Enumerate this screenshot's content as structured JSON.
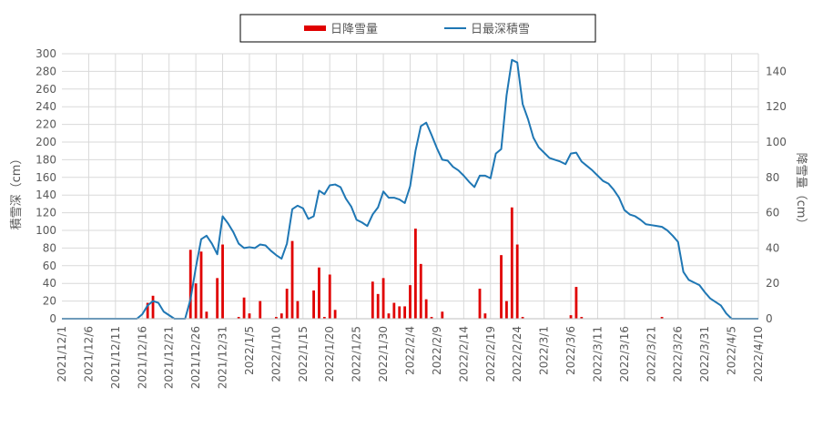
{
  "chart_data": {
    "type": "bar+line",
    "categories": [
      "2021/12/1",
      "2021/12/6",
      "2021/12/11",
      "2021/12/16",
      "2021/12/21",
      "2021/12/26",
      "2021/12/31",
      "2022/1/5",
      "2022/1/10",
      "2022/1/15",
      "2022/1/20",
      "2022/1/25",
      "2022/1/30",
      "2022/2/4",
      "2022/2/9",
      "2022/2/14",
      "2022/2/19",
      "2022/2/24",
      "2022/3/1",
      "2022/3/6",
      "2022/3/11",
      "2022/3/16",
      "2022/3/21",
      "2022/3/26",
      "2022/3/31",
      "2022/4/5",
      "2022/4/10"
    ],
    "left_axis": {
      "label": "積雪深（cm）",
      "range": [
        0,
        300
      ],
      "ticks": [
        0,
        20,
        40,
        60,
        80,
        100,
        120,
        140,
        160,
        180,
        200,
        220,
        240,
        260,
        280,
        300
      ]
    },
    "right_axis": {
      "label": "降雪量（cm）",
      "range": [
        0,
        150
      ],
      "ticks": [
        0,
        20,
        40,
        60,
        80,
        100,
        120,
        140
      ]
    },
    "grid": true,
    "legend_position": "top",
    "series": [
      {
        "name": "日降雪量",
        "type": "bar",
        "axis": "right",
        "color": "#e00000",
        "points": [
          [
            16,
            9
          ],
          [
            17,
            13
          ],
          [
            24,
            39
          ],
          [
            25,
            20
          ],
          [
            26,
            38
          ],
          [
            27,
            4
          ],
          [
            29,
            23
          ],
          [
            30,
            42
          ],
          [
            33,
            1
          ],
          [
            34,
            12
          ],
          [
            35,
            3
          ],
          [
            37,
            10
          ],
          [
            40,
            1
          ],
          [
            41,
            3
          ],
          [
            42,
            17
          ],
          [
            43,
            44
          ],
          [
            44,
            10
          ],
          [
            47,
            16
          ],
          [
            48,
            29
          ],
          [
            49,
            1
          ],
          [
            50,
            25
          ],
          [
            51,
            5
          ],
          [
            58,
            21
          ],
          [
            59,
            14
          ],
          [
            60,
            23
          ],
          [
            61,
            3
          ],
          [
            62,
            9
          ],
          [
            63,
            7
          ],
          [
            64,
            7
          ],
          [
            65,
            19
          ],
          [
            66,
            51
          ],
          [
            67,
            31
          ],
          [
            68,
            11
          ],
          [
            69,
            1
          ],
          [
            71,
            4
          ],
          [
            78,
            17
          ],
          [
            79,
            3
          ],
          [
            82,
            36
          ],
          [
            83,
            10
          ],
          [
            84,
            63
          ],
          [
            85,
            42
          ],
          [
            86,
            1
          ],
          [
            95,
            2
          ],
          [
            96,
            18
          ],
          [
            97,
            1
          ],
          [
            112,
            1
          ]
        ]
      },
      {
        "name": "日最深積雪",
        "type": "line",
        "axis": "left",
        "color": "#1f77b4",
        "points": [
          [
            0,
            0
          ],
          [
            14,
            0
          ],
          [
            15,
            5
          ],
          [
            16,
            15
          ],
          [
            17,
            20
          ],
          [
            18,
            18
          ],
          [
            19,
            8
          ],
          [
            20,
            4
          ],
          [
            21,
            0
          ],
          [
            23,
            0
          ],
          [
            24,
            22
          ],
          [
            25,
            58
          ],
          [
            26,
            90
          ],
          [
            27,
            94
          ],
          [
            28,
            85
          ],
          [
            29,
            73
          ],
          [
            30,
            116
          ],
          [
            31,
            108
          ],
          [
            32,
            98
          ],
          [
            33,
            85
          ],
          [
            34,
            80
          ],
          [
            35,
            81
          ],
          [
            36,
            80
          ],
          [
            37,
            84
          ],
          [
            38,
            83
          ],
          [
            39,
            77
          ],
          [
            40,
            72
          ],
          [
            41,
            68
          ],
          [
            42,
            85
          ],
          [
            43,
            124
          ],
          [
            44,
            128
          ],
          [
            45,
            125
          ],
          [
            46,
            113
          ],
          [
            47,
            116
          ],
          [
            48,
            145
          ],
          [
            49,
            141
          ],
          [
            50,
            151
          ],
          [
            51,
            152
          ],
          [
            52,
            149
          ],
          [
            53,
            136
          ],
          [
            54,
            127
          ],
          [
            55,
            112
          ],
          [
            56,
            109
          ],
          [
            57,
            105
          ],
          [
            58,
            118
          ],
          [
            59,
            126
          ],
          [
            60,
            144
          ],
          [
            61,
            137
          ],
          [
            62,
            137
          ],
          [
            63,
            135
          ],
          [
            64,
            131
          ],
          [
            65,
            150
          ],
          [
            66,
            190
          ],
          [
            67,
            218
          ],
          [
            68,
            222
          ],
          [
            69,
            208
          ],
          [
            70,
            193
          ],
          [
            71,
            180
          ],
          [
            72,
            179
          ],
          [
            73,
            172
          ],
          [
            74,
            168
          ],
          [
            75,
            162
          ],
          [
            76,
            155
          ],
          [
            77,
            149
          ],
          [
            78,
            162
          ],
          [
            79,
            162
          ],
          [
            80,
            159
          ],
          [
            81,
            187
          ],
          [
            82,
            192
          ],
          [
            83,
            253
          ],
          [
            84,
            293
          ],
          [
            85,
            290
          ],
          [
            86,
            243
          ],
          [
            87,
            226
          ],
          [
            88,
            205
          ],
          [
            89,
            194
          ],
          [
            90,
            188
          ],
          [
            91,
            182
          ],
          [
            92,
            180
          ],
          [
            93,
            178
          ],
          [
            94,
            175
          ],
          [
            95,
            187
          ],
          [
            96,
            188
          ],
          [
            97,
            178
          ],
          [
            98,
            173
          ],
          [
            99,
            168
          ],
          [
            100,
            162
          ],
          [
            101,
            156
          ],
          [
            102,
            153
          ],
          [
            103,
            146
          ],
          [
            104,
            137
          ],
          [
            105,
            123
          ],
          [
            106,
            118
          ],
          [
            107,
            116
          ],
          [
            108,
            112
          ],
          [
            109,
            107
          ],
          [
            110,
            106
          ],
          [
            111,
            105
          ],
          [
            112,
            104
          ],
          [
            113,
            100
          ],
          [
            114,
            94
          ],
          [
            115,
            87
          ],
          [
            116,
            53
          ],
          [
            117,
            44
          ],
          [
            118,
            41
          ],
          [
            119,
            38
          ],
          [
            120,
            30
          ],
          [
            121,
            23
          ],
          [
            122,
            19
          ],
          [
            123,
            15
          ],
          [
            124,
            6
          ],
          [
            125,
            0
          ],
          [
            130,
            0
          ]
        ]
      }
    ]
  }
}
